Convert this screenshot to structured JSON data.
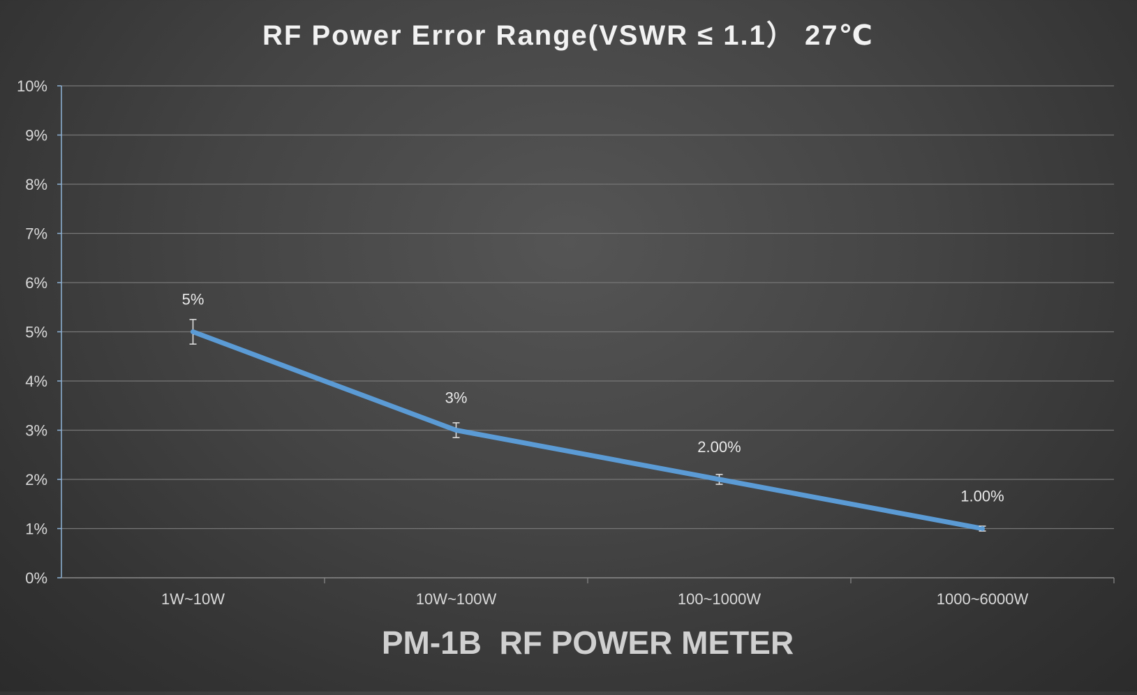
{
  "chart_data": {
    "type": "line",
    "title": "RF Power Error Range(VSWR ≤ 1.1） 27℃",
    "xlabel": "PM-1B  RF POWER METER",
    "ylabel": "",
    "categories": [
      "1W~10W",
      "10W~100W",
      "100~1000W",
      "1000~6000W"
    ],
    "series": [
      {
        "values": [
          5,
          3,
          2,
          1
        ],
        "data_labels": [
          "5%",
          "3%",
          "2.00%",
          "1.00%"
        ],
        "error": [
          0.25,
          0.15,
          0.1,
          0.05
        ],
        "color": "#5b9bd5"
      }
    ],
    "ylim": [
      0,
      10
    ],
    "yticks": [
      "0%",
      "1%",
      "2%",
      "3%",
      "4%",
      "5%",
      "6%",
      "7%",
      "8%",
      "9%",
      "10%"
    ],
    "grid": true,
    "legend": "none"
  },
  "colors": {
    "title": "#f2f2f2",
    "xlabel": "#d0d0d0",
    "tick": "#d9d9d9",
    "grid": "#777777",
    "axis": "#8fb4d8",
    "line": "#5b9bd5"
  }
}
